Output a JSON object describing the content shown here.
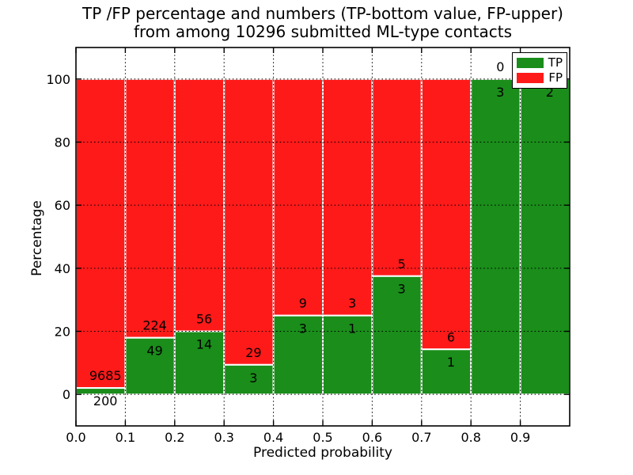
{
  "title": {
    "line1": "TP /FP percentage and numbers (TP-bottom value, FP-upper)",
    "line2": "from among 10296 submitted ML-type contacts"
  },
  "axes": {
    "xlabel": "Predicted probability",
    "ylabel": "Percentage"
  },
  "legend": {
    "position": "upper right",
    "items": [
      {
        "label": "TP",
        "color": "#1a8d1a"
      },
      {
        "label": "FP",
        "color": "#ff1a1a"
      }
    ]
  },
  "chart_data": {
    "type": "bar",
    "variant": "stacked-percentage-histogram",
    "title": "TP /FP percentage and numbers (TP-bottom value, FP-upper) from among 10296 submitted ML-type contacts",
    "xlabel": "Predicted probability",
    "ylabel": "Percentage",
    "total_submitted": 10296,
    "xlim": [
      0.0,
      1.0
    ],
    "ylim": [
      -10,
      110
    ],
    "xticks": [
      "0.0",
      "0.1",
      "0.2",
      "0.3",
      "0.4",
      "0.5",
      "0.6",
      "0.7",
      "0.8",
      "0.9"
    ],
    "yticks": [
      0,
      20,
      40,
      60,
      80,
      100
    ],
    "grid": "black dotted, both axes, drawn over bars",
    "legend_position": "upper right",
    "colors": {
      "tp": "#1a8d1a",
      "fp": "#ff1a1a",
      "bar_edge": "#ffffff"
    },
    "bin_width": 0.1,
    "bins": [
      {
        "x_start": 0.0,
        "x_end": 0.1,
        "tp": 200,
        "fp": 9685,
        "tp_percent": 2.02
      },
      {
        "x_start": 0.1,
        "x_end": 0.2,
        "tp": 49,
        "fp": 224,
        "tp_percent": 17.95
      },
      {
        "x_start": 0.2,
        "x_end": 0.3,
        "tp": 14,
        "fp": 56,
        "tp_percent": 20.0
      },
      {
        "x_start": 0.3,
        "x_end": 0.4,
        "tp": 3,
        "fp": 29,
        "tp_percent": 9.38
      },
      {
        "x_start": 0.4,
        "x_end": 0.5,
        "tp": 3,
        "fp": 9,
        "tp_percent": 25.0
      },
      {
        "x_start": 0.5,
        "x_end": 0.6,
        "tp": 1,
        "fp": 3,
        "tp_percent": 25.0
      },
      {
        "x_start": 0.6,
        "x_end": 0.7,
        "tp": 3,
        "fp": 5,
        "tp_percent": 37.5
      },
      {
        "x_start": 0.7,
        "x_end": 0.8,
        "tp": 1,
        "fp": 6,
        "tp_percent": 14.29
      },
      {
        "x_start": 0.8,
        "x_end": 0.9,
        "tp": 3,
        "fp": 0,
        "tp_percent": 100.0
      },
      {
        "x_start": 0.9,
        "x_end": 1.0,
        "tp": 2,
        "fp": 0,
        "tp_percent": 100.0
      }
    ],
    "series": [
      {
        "name": "TP",
        "values_percent": [
          2.02,
          17.95,
          20.0,
          9.38,
          25.0,
          25.0,
          37.5,
          14.29,
          100.0,
          100.0
        ]
      },
      {
        "name": "FP",
        "values_percent": [
          97.98,
          82.05,
          80.0,
          90.62,
          75.0,
          75.0,
          62.5,
          85.71,
          0.0,
          0.0
        ]
      }
    ]
  }
}
